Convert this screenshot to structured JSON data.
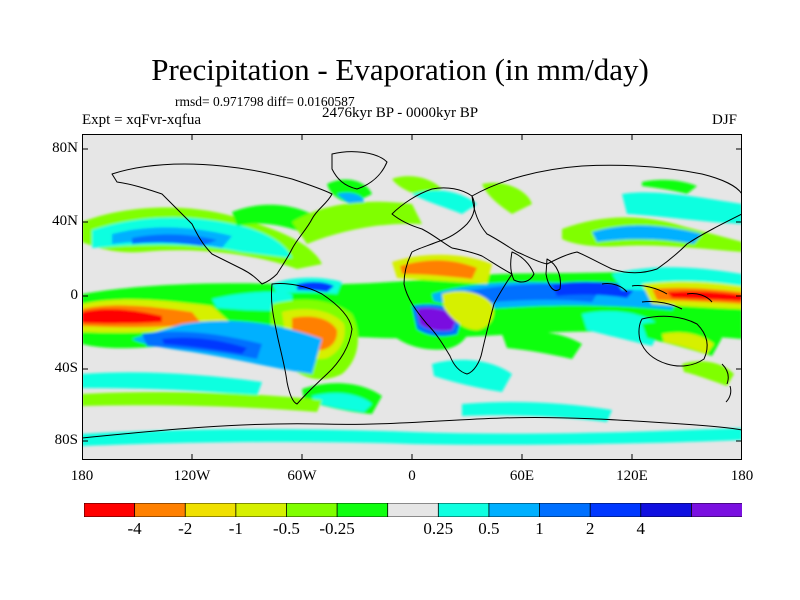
{
  "title": "Precipitation - Evaporation (in mm/day)",
  "stats": "rmsd= 0.971798 diff= 0.0160587",
  "experiment": "Expt = xqFvr-xqfua",
  "period": "2476kyr BP - 0000kyr BP",
  "season": "DJF",
  "lat_labels": [
    "80N",
    "40N",
    "0",
    "40S",
    "80S"
  ],
  "lon_labels": [
    "180",
    "120W",
    "60W",
    "0",
    "60E",
    "120E",
    "180"
  ],
  "colorbar": {
    "colors": [
      "#ff0000",
      "#ff8000",
      "#f0e000",
      "#d6f000",
      "#80ff00",
      "#10ff10",
      "#e6e6e6",
      "#10ffe0",
      "#00b0ff",
      "#0070ff",
      "#0038ff",
      "#1010e0",
      "#7a10e0"
    ],
    "labels": [
      "-4",
      "-2",
      "-1",
      "-0.5",
      "-0.25",
      "0.25",
      "0.5",
      "1",
      "2",
      "4"
    ]
  }
}
